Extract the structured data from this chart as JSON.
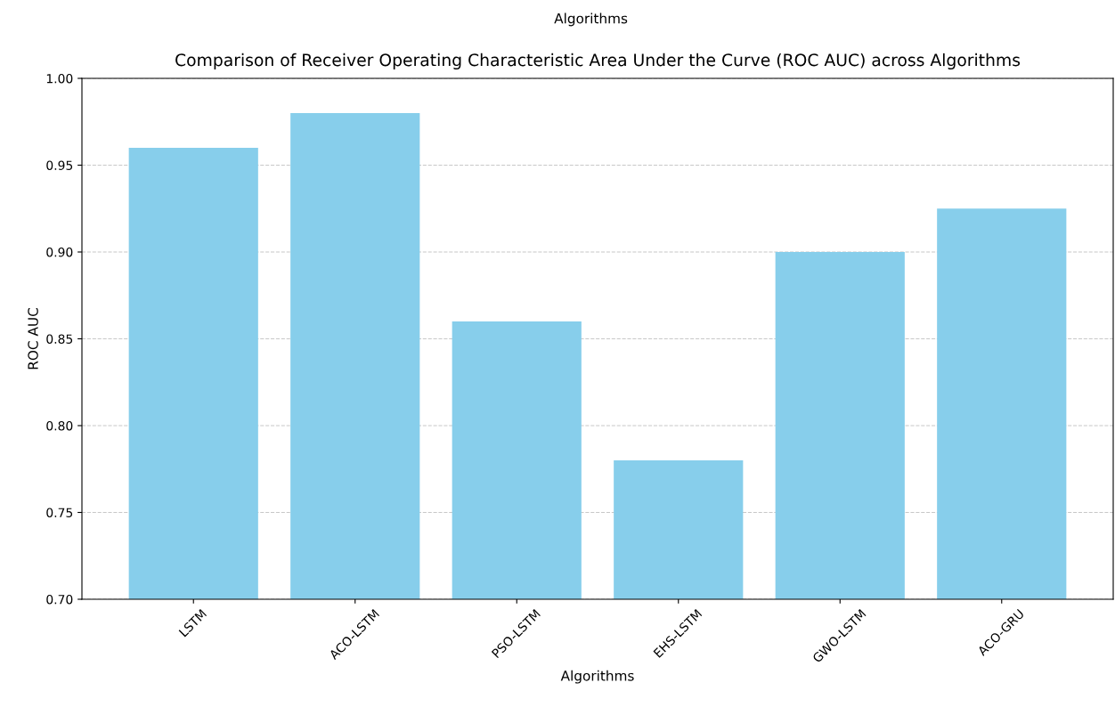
{
  "chart_data": {
    "type": "bar",
    "title": "Comparison of Receiver Operating Characteristic Area Under the Curve (ROC AUC) across Algorithms",
    "xlabel": "Algorithms",
    "ylabel": "ROC AUC",
    "annotations": [
      "Algorithms"
    ],
    "categories": [
      "LSTM",
      "ACO-LSTM",
      "PSO-LSTM",
      "EHS-LSTM",
      "GWO-LSTM",
      "ACO-GRU"
    ],
    "values": [
      0.96,
      0.98,
      0.86,
      0.78,
      0.9,
      0.925
    ],
    "color": "#87ceeb",
    "ylim": [
      0.7,
      1.0
    ],
    "yticks": [
      {
        "value": 0.7,
        "label": "0.70"
      },
      {
        "value": 0.75,
        "label": "0.75"
      },
      {
        "value": 0.8,
        "label": "0.80"
      },
      {
        "value": 0.85,
        "label": "0.85"
      },
      {
        "value": 0.9,
        "label": "0.90"
      },
      {
        "value": 0.95,
        "label": "0.95"
      },
      {
        "value": 1.0,
        "label": "1.00"
      }
    ],
    "grid": "y",
    "line_style": "dashed"
  }
}
